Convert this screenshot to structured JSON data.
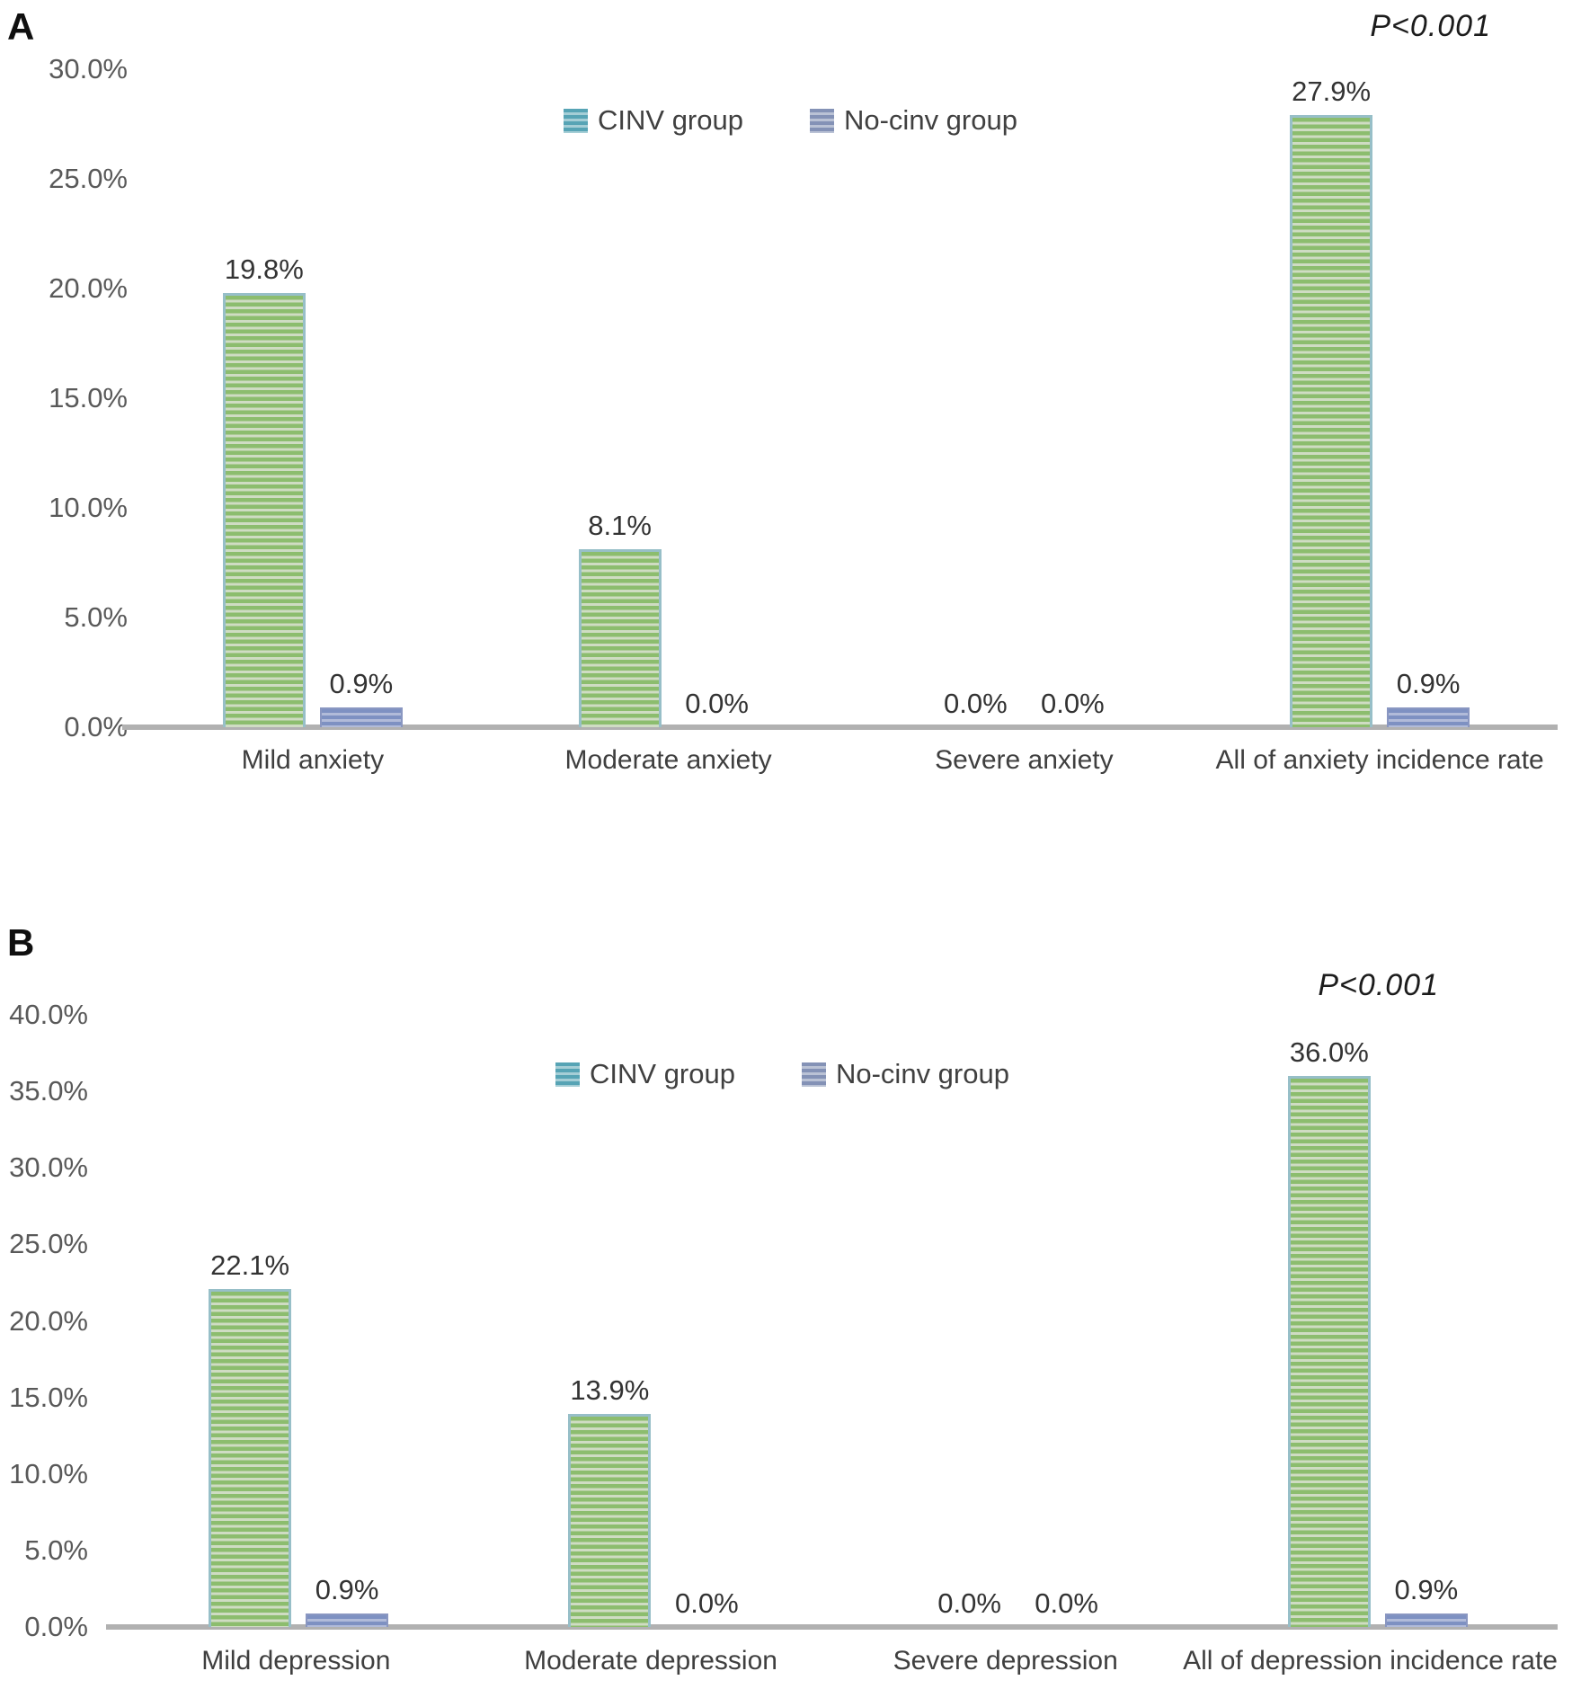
{
  "chart_data": [
    {
      "type": "bar",
      "panel_label": "A",
      "title": "",
      "p_value_annotation": "P<0.001",
      "categories": [
        "Mild anxiety",
        "Moderate anxiety",
        "Severe anxiety",
        "All of anxiety incidence rate"
      ],
      "series": [
        {
          "name": "CINV group",
          "values": [
            19.8,
            8.1,
            0.0,
            27.9
          ],
          "labels": [
            "19.8%",
            "8.1%",
            "0.0%",
            "27.9%"
          ]
        },
        {
          "name": "No-cinv group",
          "values": [
            0.9,
            0.0,
            0.0,
            0.9
          ],
          "labels": [
            "0.9%",
            "0.0%",
            "0.0%",
            "0.9%"
          ]
        }
      ],
      "xlabel": "",
      "ylabel": "",
      "ylim": [
        0,
        30
      ],
      "yticks": [
        "30.0%",
        "25.0%",
        "20.0%",
        "15.0%",
        "10.0%",
        "5.0%",
        "0.0%"
      ],
      "grid": false,
      "legend_position": "top-center"
    },
    {
      "type": "bar",
      "panel_label": "B",
      "title": "",
      "p_value_annotation": "P<0.001",
      "categories": [
        "Mild depression",
        "Moderate depression",
        "Severe depression",
        "All of depression incidence rate"
      ],
      "series": [
        {
          "name": "CINV group",
          "values": [
            22.1,
            13.9,
            0.0,
            36.0
          ],
          "labels": [
            "22.1%",
            "13.9%",
            "0.0%",
            "36.0%"
          ]
        },
        {
          "name": "No-cinv group",
          "values": [
            0.9,
            0.0,
            0.0,
            0.9
          ],
          "labels": [
            "0.9%",
            "0.0%",
            "0.0%",
            "0.9%"
          ]
        }
      ],
      "xlabel": "",
      "ylabel": "",
      "ylim": [
        0,
        40
      ],
      "yticks": [
        "40.0%",
        "35.0%",
        "30.0%",
        "25.0%",
        "20.0%",
        "15.0%",
        "10.0%",
        "5.0%",
        "0.0%"
      ],
      "grid": false,
      "legend_position": "top-center"
    }
  ],
  "colors": {
    "cinv_main": "#8cbd6e",
    "cinv_stripe": "#cfdcc3",
    "cinv_edge": "#97bfc8",
    "nocinv_main": "#7e91c2",
    "nocinv_stripe": "#b1bbd9",
    "nocinv_edge": "#8a97c1",
    "legend_cinv_main": "#57a4b5",
    "legend_cinv_stripe": "#a5ced6",
    "legend_nocinv_main": "#8492b6",
    "legend_nocinv_stripe": "#bac2d5",
    "axis": "#b1b1b1",
    "tick_text": "#595959",
    "value_text": "#333333",
    "category_text": "#3f3f3f",
    "legend_text": "#404040",
    "panel_label_text": "#0f0f0f",
    "p_text": "#1c1c1c"
  }
}
